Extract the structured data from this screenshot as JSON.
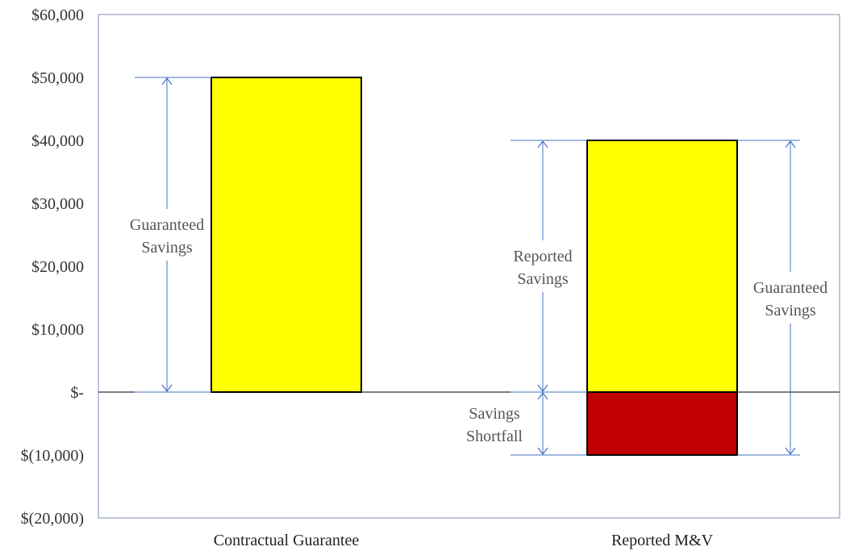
{
  "chart_data": {
    "type": "bar",
    "categories": [
      "Contractual Guarantee",
      "Reported M&V"
    ],
    "ylim": [
      -20000,
      60000
    ],
    "y_ticks": [
      60000,
      50000,
      40000,
      30000,
      20000,
      10000,
      0,
      -10000,
      -20000
    ],
    "y_tick_labels": [
      "$60,000",
      "$50,000",
      "$40,000",
      "$30,000",
      "$20,000",
      "$10,000",
      "$-",
      "$(10,000)",
      "$(20,000)"
    ],
    "grid": false,
    "bars": [
      {
        "category": "Contractual Guarantee",
        "from": 0,
        "to": 50000,
        "color": "#ffff00"
      },
      {
        "category": "Reported M&V",
        "from": 0,
        "to": 40000,
        "color": "#ffff00"
      },
      {
        "category": "Reported M&V",
        "from": -10000,
        "to": 0,
        "color": "#c00000"
      }
    ],
    "annotations": [
      {
        "lines": [
          "Guaranteed",
          "Savings"
        ],
        "category": "Contractual Guarantee",
        "side": "left",
        "from": 0,
        "to": 50000
      },
      {
        "lines": [
          "Reported",
          "Savings"
        ],
        "category": "Reported M&V",
        "side": "left",
        "from": 0,
        "to": 40000
      },
      {
        "lines": [
          "Savings",
          "Shortfall"
        ],
        "category": "Reported M&V",
        "side": "left",
        "from": -10000,
        "to": 0
      },
      {
        "lines": [
          "Guaranteed",
          "Savings"
        ],
        "category": "Reported M&V",
        "side": "right",
        "from": -10000,
        "to": 40000
      }
    ],
    "colors": {
      "arrow": "#4472c4",
      "axis": "#000000",
      "frame": "#7f8fb0"
    }
  }
}
